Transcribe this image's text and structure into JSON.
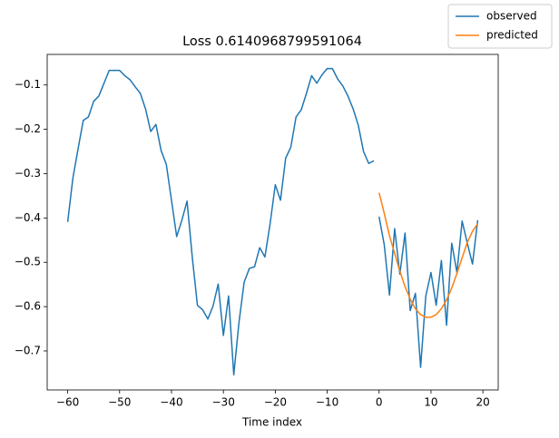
{
  "chart_data": {
    "type": "line",
    "title": "Loss 0.6140968799591064",
    "x_label": "Time index",
    "x": [
      -60,
      -59,
      -58,
      -57,
      -56,
      -55,
      -54,
      -53,
      -52,
      -51,
      -50,
      -49,
      -48,
      -47,
      -46,
      -45,
      -44,
      -43,
      -42,
      -41,
      -40,
      -39,
      -38,
      -37,
      -36,
      -35,
      -34,
      -33,
      -32,
      -31,
      -30,
      -29,
      -28,
      -27,
      -26,
      -25,
      -24,
      -23,
      -22,
      -21,
      -20,
      -19,
      -18,
      -17,
      -16,
      -15,
      -14,
      -13,
      -12,
      -11,
      -10,
      -9,
      -8,
      -7,
      -6,
      -5,
      -4,
      -3,
      -2,
      -1,
      null,
      0,
      1,
      2,
      3,
      4,
      5,
      6,
      7,
      8,
      9,
      10,
      11,
      12,
      13,
      14,
      15,
      16,
      17,
      18,
      19
    ],
    "series": [
      {
        "name": "observed",
        "color": "#1f77b4",
        "values": [
          -0.409,
          -0.31,
          -0.244,
          -0.18,
          -0.172,
          -0.137,
          -0.125,
          -0.096,
          -0.067,
          -0.067,
          -0.067,
          -0.079,
          -0.088,
          -0.104,
          -0.119,
          -0.154,
          -0.205,
          -0.189,
          -0.248,
          -0.279,
          -0.36,
          -0.442,
          -0.405,
          -0.362,
          -0.488,
          -0.597,
          -0.607,
          -0.628,
          -0.599,
          -0.549,
          -0.665,
          -0.576,
          -0.754,
          -0.636,
          -0.545,
          -0.514,
          -0.51,
          -0.467,
          -0.488,
          -0.413,
          -0.325,
          -0.36,
          -0.265,
          -0.24,
          -0.172,
          -0.156,
          -0.119,
          -0.079,
          -0.096,
          -0.077,
          -0.063,
          -0.063,
          -0.086,
          -0.102,
          -0.125,
          -0.154,
          -0.191,
          -0.25,
          -0.277,
          -0.271,
          null,
          -0.397,
          -0.461,
          -0.574,
          -0.424,
          -0.527,
          -0.434,
          -0.609,
          -0.57,
          -0.737,
          -0.576,
          -0.523,
          -0.597,
          -0.496,
          -0.642,
          -0.457,
          -0.523,
          -0.407,
          -0.457,
          -0.504,
          -0.405
        ]
      },
      {
        "name": "predicted",
        "color": "#ff7f0e",
        "values": [
          null,
          null,
          null,
          null,
          null,
          null,
          null,
          null,
          null,
          null,
          null,
          null,
          null,
          null,
          null,
          null,
          null,
          null,
          null,
          null,
          null,
          null,
          null,
          null,
          null,
          null,
          null,
          null,
          null,
          null,
          null,
          null,
          null,
          null,
          null,
          null,
          null,
          null,
          null,
          null,
          null,
          null,
          null,
          null,
          null,
          null,
          null,
          null,
          null,
          null,
          null,
          null,
          null,
          null,
          null,
          null,
          null,
          null,
          null,
          null,
          null,
          -0.343,
          -0.39,
          -0.44,
          -0.48,
          -0.52,
          -0.555,
          -0.583,
          -0.605,
          -0.618,
          -0.624,
          -0.624,
          -0.618,
          -0.605,
          -0.585,
          -0.558,
          -0.525,
          -0.49,
          -0.455,
          -0.43,
          -0.413
        ]
      }
    ],
    "xlim": [
      -63.95,
      22.95
    ],
    "ylim": [
      -0.788,
      -0.031
    ],
    "xticks": [
      {
        "value": -60,
        "label": "−60"
      },
      {
        "value": -50,
        "label": "−50"
      },
      {
        "value": -40,
        "label": "−40"
      },
      {
        "value": -30,
        "label": "−30"
      },
      {
        "value": -20,
        "label": "−20"
      },
      {
        "value": -10,
        "label": "−10"
      },
      0,
      10,
      20
    ],
    "yticks": [
      {
        "value": -0.7,
        "label": "−0.7"
      },
      {
        "value": -0.6,
        "label": "−0.6"
      },
      {
        "value": -0.5,
        "label": "−0.5"
      },
      {
        "value": -0.4,
        "label": "−0.4"
      },
      {
        "value": -0.3,
        "label": "−0.3"
      },
      {
        "value": -0.2,
        "label": "−0.2"
      },
      {
        "value": -0.1,
        "label": "−0.1"
      }
    ],
    "legend": "upper right"
  }
}
